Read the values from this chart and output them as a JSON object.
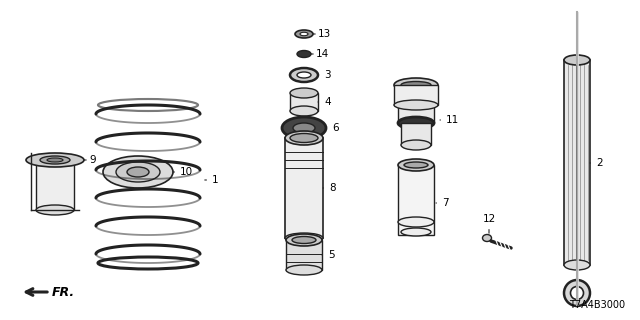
{
  "diagram_code": "T7A4B3000",
  "background_color": "#ffffff",
  "line_color": "#222222",
  "text_color": "#000000",
  "figsize": [
    6.4,
    3.2
  ],
  "dpi": 100
}
